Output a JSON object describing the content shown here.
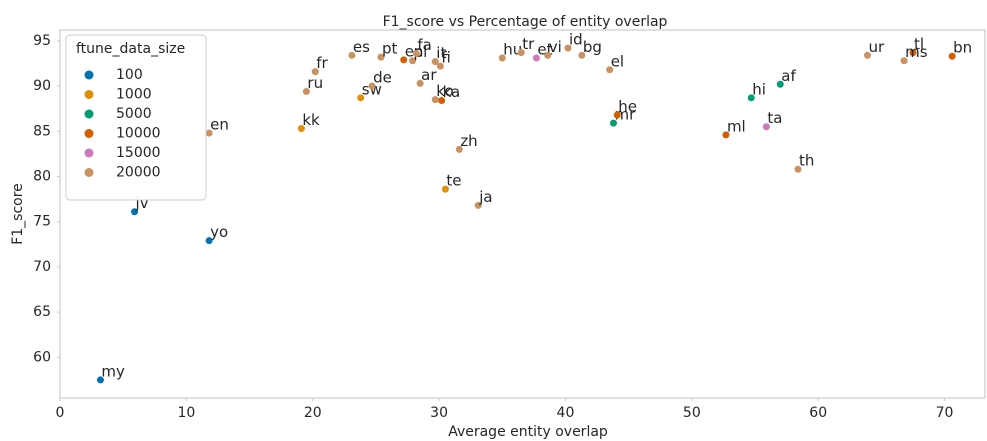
{
  "chart_data": {
    "type": "scatter",
    "title": "F1_score vs Percentage of entity overlap",
    "x_label": "Average entity overlap",
    "y_label": "F1_score",
    "legend_title": "ftune_data_size",
    "legend": "upper left",
    "grid": false,
    "xlim": [
      0,
      73.2
    ],
    "ylim": [
      55.5,
      96.2
    ],
    "xticks": [
      0,
      10,
      20,
      30,
      40,
      50,
      60,
      70
    ],
    "yticks": [
      60,
      65,
      70,
      75,
      80,
      85,
      90,
      95
    ],
    "series": [
      {
        "name": "100",
        "color": "#0173b2",
        "x": [
          3.2,
          5.9,
          11.8
        ],
        "values": [
          57.5,
          76.1,
          72.9
        ],
        "labels": [
          "my",
          "jv",
          "yo"
        ]
      },
      {
        "name": "1000",
        "color": "#de8f05",
        "x": [
          19.1,
          23.8,
          30.5
        ],
        "values": [
          85.3,
          88.7,
          78.6
        ],
        "labels": [
          "kk",
          "sw",
          "te"
        ]
      },
      {
        "name": "5000",
        "color": "#029e73",
        "x": [
          43.8,
          54.7,
          57.0
        ],
        "values": [
          85.9,
          88.7,
          90.2
        ],
        "labels": [
          "mr",
          "hi",
          "af"
        ]
      },
      {
        "name": "10000",
        "color": "#d55e00",
        "x": [
          27.2,
          30.2,
          44.1,
          52.7,
          67.5,
          70.6
        ],
        "values": [
          92.9,
          88.4,
          86.8,
          84.6,
          93.7,
          93.3
        ],
        "labels": [
          "en",
          "ka",
          "he",
          "ml",
          "tl",
          "bn"
        ]
      },
      {
        "name": "15000",
        "color": "#cc78bc",
        "x": [
          37.7,
          55.9
        ],
        "values": [
          93.1,
          85.5
        ],
        "labels": [
          "et",
          "ta"
        ]
      },
      {
        "name": "20000",
        "color": "#ca9161",
        "x": [
          11.8,
          19.5,
          20.2,
          23.1,
          24.7,
          25.4,
          27.9,
          28.2,
          28.5,
          29.7,
          30.1,
          29.7,
          31.6,
          33.1,
          35.0,
          36.5,
          38.6,
          40.2,
          41.3,
          43.5,
          58.4,
          63.9,
          66.8
        ],
        "values": [
          84.8,
          89.4,
          91.6,
          93.4,
          90.0,
          93.2,
          92.8,
          93.6,
          90.3,
          92.7,
          92.2,
          88.5,
          83.0,
          76.8,
          93.1,
          93.7,
          93.4,
          94.2,
          93.4,
          91.8,
          80.8,
          93.4,
          92.8
        ],
        "labels": [
          "en",
          "ru",
          "fr",
          "es",
          "de",
          "pt",
          "pl",
          "fa",
          "ar",
          "it",
          "fi",
          "ko",
          "zh",
          "ja",
          "hu",
          "tr",
          "vi",
          "id",
          "bg",
          "el",
          "th",
          "ur",
          "ms"
        ]
      }
    ]
  }
}
